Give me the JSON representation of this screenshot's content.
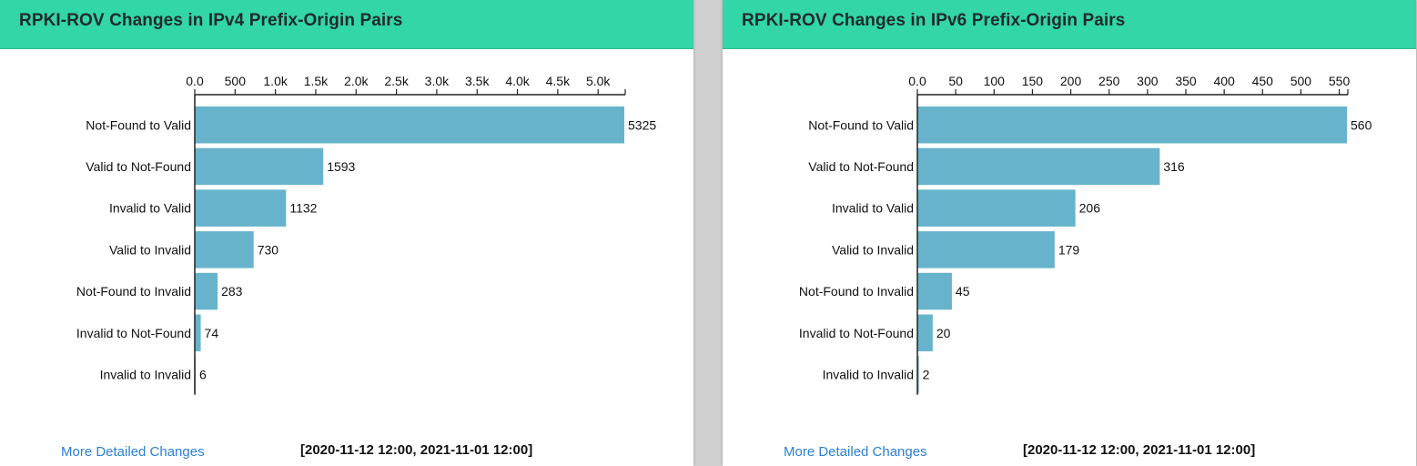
{
  "colors": {
    "header": "#33d6a6",
    "bar": "#68b3cc",
    "link": "#2b7fd6"
  },
  "panels": [
    {
      "title": "RPKI-ROV Changes in IPv4 Prefix-Origin Pairs",
      "footer_link": "More Detailed Changes",
      "footer_range": "[2020-11-12 12:00, 2021-11-01 12:00]"
    },
    {
      "title": "RPKI-ROV Changes in IPv6 Prefix-Origin Pairs",
      "footer_link": "More Detailed Changes",
      "footer_range": "[2020-11-12 12:00, 2021-11-01 12:00]"
    }
  ],
  "chart_data": [
    {
      "type": "bar",
      "orientation": "horizontal",
      "title": "RPKI-ROV Changes in IPv4 Prefix-Origin Pairs",
      "categories": [
        "Not-Found to Valid",
        "Valid to Not-Found",
        "Invalid to Valid",
        "Valid to Invalid",
        "Not-Found to Invalid",
        "Invalid to Not-Found",
        "Invalid to Invalid"
      ],
      "values": [
        5325,
        1593,
        1132,
        730,
        283,
        74,
        6
      ],
      "axis_position": "top",
      "xlim": [
        0,
        5325
      ],
      "ticks": [
        0,
        500,
        1000,
        1500,
        2000,
        2500,
        3000,
        3500,
        4000,
        4500,
        5000
      ],
      "tick_labels": [
        "0.0",
        "500",
        "1.0k",
        "1.5k",
        "2.0k",
        "2.5k",
        "3.0k",
        "3.5k",
        "4.0k",
        "4.5k",
        "5.0k"
      ],
      "grid": false,
      "legend": "none"
    },
    {
      "type": "bar",
      "orientation": "horizontal",
      "title": "RPKI-ROV Changes in IPv6 Prefix-Origin Pairs",
      "categories": [
        "Not-Found to Valid",
        "Valid to Not-Found",
        "Invalid to Valid",
        "Valid to Invalid",
        "Not-Found to Invalid",
        "Invalid to Not-Found",
        "Invalid to Invalid"
      ],
      "values": [
        560,
        316,
        206,
        179,
        45,
        20,
        2
      ],
      "axis_position": "top",
      "xlim": [
        0,
        560
      ],
      "ticks": [
        0,
        50,
        100,
        150,
        200,
        250,
        300,
        350,
        400,
        450,
        500,
        550
      ],
      "tick_labels": [
        "0.0",
        "50",
        "100",
        "150",
        "200",
        "250",
        "300",
        "350",
        "400",
        "450",
        "500",
        "550"
      ],
      "grid": false,
      "legend": "none"
    }
  ]
}
